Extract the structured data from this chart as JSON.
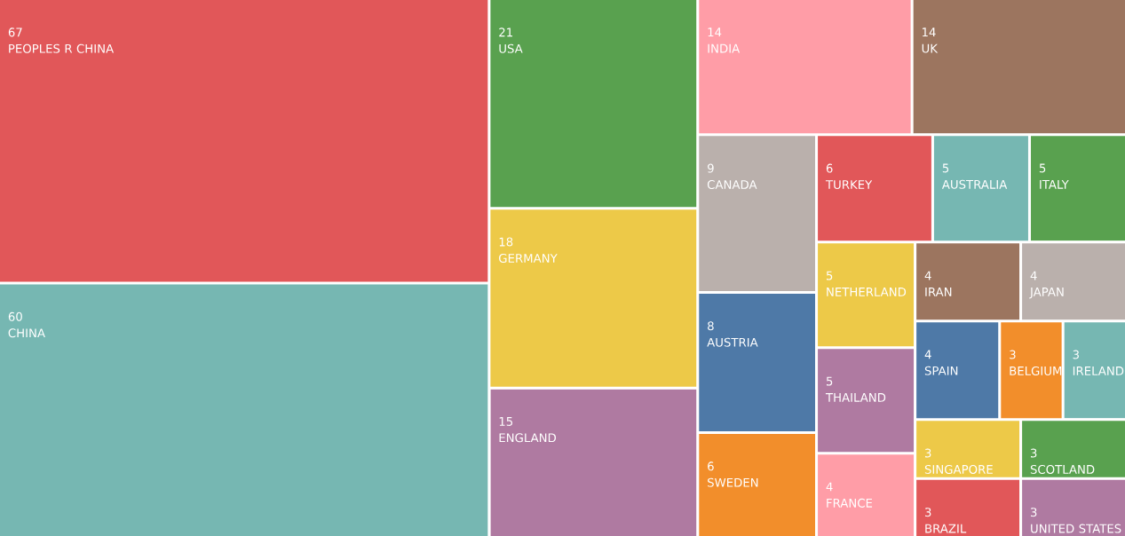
{
  "chart_data": {
    "type": "other",
    "categories": [
      "PEOPLES R CHINA",
      "CHINA",
      "USA",
      "GERMANY",
      "ENGLAND",
      "INDIA",
      "UK",
      "CANADA",
      "AUSTRIA",
      "SWEDEN",
      "TURKEY",
      "AUSTRALIA",
      "ITALY",
      "NETHERLAND",
      "THAILAND",
      "FRANCE",
      "IRAN",
      "JAPAN",
      "SPAIN",
      "BELGIUM",
      "IRELAND",
      "SINGAPORE",
      "BRAZIL",
      "SCOTLAND",
      "UNITED STATES"
    ],
    "values": [
      67,
      60,
      21,
      18,
      15,
      14,
      14,
      9,
      8,
      6,
      6,
      5,
      5,
      5,
      5,
      4,
      4,
      4,
      4,
      3,
      3,
      3,
      3,
      3,
      3
    ],
    "colors": [
      "#e15759",
      "#76b7b2",
      "#59a14f",
      "#edc948",
      "#af7aa1",
      "#ff9da7",
      "#9c755f",
      "#bab0ac",
      "#4e79a7",
      "#f28e2b",
      "#e15759",
      "#76b7b2",
      "#59a14f",
      "#edc948",
      "#af7aa1",
      "#ff9da7",
      "#9c755f",
      "#bab0ac",
      "#4e79a7",
      "#f28e2b",
      "#76b7b2",
      "#edc948",
      "#e15759",
      "#59a14f",
      "#af7aa1"
    ],
    "data_labels": true
  }
}
